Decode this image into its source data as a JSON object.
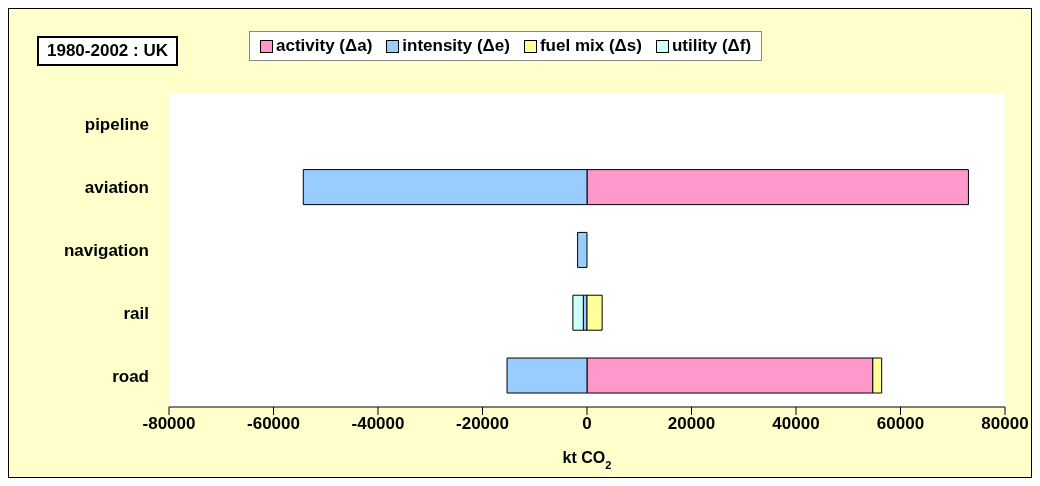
{
  "chart_data": {
    "type": "bar",
    "orientation": "horizontal",
    "stacked": true,
    "title": "1980-2002 : UK",
    "xlabel": "kt CO$_{2}$",
    "categories": [
      "pipeline",
      "aviation",
      "navigation",
      "rail",
      "road"
    ],
    "series": [
      {
        "name": "activity (Δa)",
        "color": "#ff99cc",
        "values": [
          null,
          73000,
          null,
          null,
          54700
        ]
      },
      {
        "name": "intensity (Δe)",
        "color": "#99ccff",
        "values": [
          null,
          -54300,
          -1800,
          -700,
          -15300
        ]
      },
      {
        "name": "fuel mix (Δs)",
        "color": "#ffff99",
        "values": [
          null,
          null,
          null,
          2900,
          1700
        ]
      },
      {
        "name": "utility (Δf)",
        "color": "#ccffff",
        "values": [
          null,
          null,
          null,
          -2000,
          null
        ]
      }
    ],
    "xlim": [
      -80000,
      80000
    ],
    "xticks": [
      -80000,
      -60000,
      -40000,
      -20000,
      0,
      20000,
      40000,
      60000,
      80000
    ],
    "legend": "top",
    "grid": false
  }
}
